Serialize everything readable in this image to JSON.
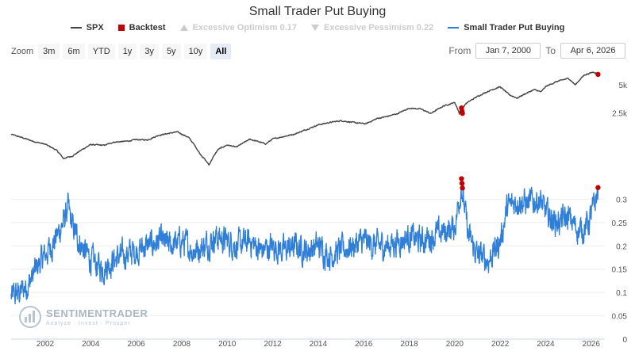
{
  "title": "Small Trader Put Buying",
  "legend": [
    {
      "label": "SPX",
      "color": "#434348",
      "symbol": "line",
      "enabled": true
    },
    {
      "label": "Backtest",
      "color": "#c00000",
      "symbol": "square",
      "enabled": true
    },
    {
      "label": "Excessive Optimism 0.17",
      "color": "#cccccc",
      "symbol": "triangle",
      "enabled": false
    },
    {
      "label": "Excessive Pessimism 0.22",
      "color": "#cccccc",
      "symbol": "triangle-down",
      "enabled": false
    },
    {
      "label": "Small Trader Put Buying",
      "color": "#2f7ed8",
      "symbol": "line",
      "enabled": true
    }
  ],
  "zoom": {
    "label": "Zoom",
    "buttons": [
      "3m",
      "6m",
      "YTD",
      "1y",
      "3y",
      "5y",
      "10y",
      "All"
    ],
    "active": "All"
  },
  "range": {
    "from_label": "From",
    "from_value": "Jan 7, 2000",
    "to_label": "To",
    "to_value": "Apr 6, 2026"
  },
  "watermark": {
    "brand": "SENTIMENTRADER",
    "tagline": "Analyze · Invest · Prosper"
  },
  "chart_data": {
    "type": "line",
    "x_range": [
      2000.5,
      2026.6
    ],
    "x_ticks": [
      "2002",
      "2004",
      "2006",
      "2008",
      "2010",
      "2012",
      "2014",
      "2016",
      "2018",
      "2020",
      "2022",
      "2024",
      "2026"
    ],
    "spx": {
      "name": "SPX",
      "scale": "log",
      "y_ticks": [
        "2.5k",
        "5k"
      ],
      "points": [
        [
          2000.5,
          1460
        ],
        [
          2001.0,
          1340
        ],
        [
          2001.5,
          1220
        ],
        [
          2002.0,
          1140
        ],
        [
          2002.5,
          980
        ],
        [
          2002.8,
          800
        ],
        [
          2003.2,
          850
        ],
        [
          2003.6,
          990
        ],
        [
          2004.0,
          1130
        ],
        [
          2004.6,
          1110
        ],
        [
          2005.0,
          1200
        ],
        [
          2005.6,
          1230
        ],
        [
          2006.0,
          1280
        ],
        [
          2006.5,
          1270
        ],
        [
          2007.0,
          1430
        ],
        [
          2007.8,
          1550
        ],
        [
          2008.3,
          1350
        ],
        [
          2008.8,
          900
        ],
        [
          2009.2,
          680
        ],
        [
          2009.6,
          1000
        ],
        [
          2010.0,
          1120
        ],
        [
          2010.4,
          1060
        ],
        [
          2011.0,
          1290
        ],
        [
          2011.7,
          1150
        ],
        [
          2012.0,
          1300
        ],
        [
          2012.7,
          1420
        ],
        [
          2013.0,
          1480
        ],
        [
          2013.5,
          1650
        ],
        [
          2014.0,
          1850
        ],
        [
          2014.6,
          1980
        ],
        [
          2015.0,
          2050
        ],
        [
          2015.7,
          1940
        ],
        [
          2016.1,
          1900
        ],
        [
          2016.6,
          2170
        ],
        [
          2017.0,
          2270
        ],
        [
          2017.5,
          2450
        ],
        [
          2018.0,
          2800
        ],
        [
          2018.5,
          2750
        ],
        [
          2018.95,
          2450
        ],
        [
          2019.5,
          2950
        ],
        [
          2020.0,
          3230
        ],
        [
          2020.2,
          2480
        ],
        [
          2020.5,
          3150
        ],
        [
          2021.0,
          3750
        ],
        [
          2021.5,
          4300
        ],
        [
          2021.99,
          4770
        ],
        [
          2022.4,
          3900
        ],
        [
          2022.75,
          3600
        ],
        [
          2023.0,
          3900
        ],
        [
          2023.5,
          4450
        ],
        [
          2023.8,
          4200
        ],
        [
          2024.0,
          4800
        ],
        [
          2024.5,
          5450
        ],
        [
          2025.0,
          5900
        ],
        [
          2025.3,
          5000
        ],
        [
          2025.7,
          6400
        ],
        [
          2026.1,
          6900
        ],
        [
          2026.3,
          6600
        ]
      ]
    },
    "put_buying": {
      "name": "Small Trader Put Buying",
      "y_range": [
        0,
        0.35
      ],
      "y_ticks": [
        "0",
        "0.05",
        "0.1",
        "0.15",
        "0.2",
        "0.25",
        "0.3"
      ],
      "points": [
        [
          2000.5,
          0.09
        ],
        [
          2000.9,
          0.1
        ],
        [
          2001.3,
          0.12
        ],
        [
          2001.7,
          0.16
        ],
        [
          2002.0,
          0.18
        ],
        [
          2002.4,
          0.21
        ],
        [
          2002.8,
          0.25
        ],
        [
          2003.0,
          0.28
        ],
        [
          2003.2,
          0.24
        ],
        [
          2003.6,
          0.2
        ],
        [
          2004.0,
          0.17
        ],
        [
          2004.5,
          0.15
        ],
        [
          2005.0,
          0.17
        ],
        [
          2005.5,
          0.18
        ],
        [
          2006.0,
          0.19
        ],
        [
          2006.5,
          0.2
        ],
        [
          2007.0,
          0.21
        ],
        [
          2007.5,
          0.2
        ],
        [
          2008.0,
          0.21
        ],
        [
          2008.5,
          0.19
        ],
        [
          2009.0,
          0.2
        ],
        [
          2009.5,
          0.22
        ],
        [
          2010.0,
          0.21
        ],
        [
          2010.5,
          0.2
        ],
        [
          2011.0,
          0.21
        ],
        [
          2011.5,
          0.19
        ],
        [
          2012.0,
          0.2
        ],
        [
          2012.5,
          0.19
        ],
        [
          2013.0,
          0.2
        ],
        [
          2013.5,
          0.19
        ],
        [
          2014.0,
          0.2
        ],
        [
          2014.5,
          0.18
        ],
        [
          2015.0,
          0.19
        ],
        [
          2015.5,
          0.2
        ],
        [
          2016.0,
          0.21
        ],
        [
          2016.5,
          0.2
        ],
        [
          2017.0,
          0.2
        ],
        [
          2017.5,
          0.21
        ],
        [
          2018.0,
          0.22
        ],
        [
          2018.5,
          0.21
        ],
        [
          2019.0,
          0.22
        ],
        [
          2019.5,
          0.23
        ],
        [
          2020.0,
          0.24
        ],
        [
          2020.3,
          0.33
        ],
        [
          2020.6,
          0.22
        ],
        [
          2021.0,
          0.18
        ],
        [
          2021.5,
          0.17
        ],
        [
          2022.0,
          0.21
        ],
        [
          2022.3,
          0.28
        ],
        [
          2022.8,
          0.3
        ],
        [
          2023.2,
          0.29
        ],
        [
          2023.7,
          0.3
        ],
        [
          2024.0,
          0.27
        ],
        [
          2024.5,
          0.25
        ],
        [
          2025.0,
          0.26
        ],
        [
          2025.5,
          0.23
        ],
        [
          2025.9,
          0.25
        ],
        [
          2026.1,
          0.28
        ],
        [
          2026.3,
          0.32
        ]
      ]
    },
    "backtest_points": [
      {
        "x": 2020.3,
        "spx": 2820,
        "put": 0.344
      },
      {
        "x": 2020.32,
        "spx": 2600,
        "put": 0.334
      },
      {
        "x": 2020.34,
        "spx": 2460,
        "put": 0.324
      },
      {
        "x": 2026.3,
        "spx": 6500,
        "put": 0.325
      }
    ]
  }
}
